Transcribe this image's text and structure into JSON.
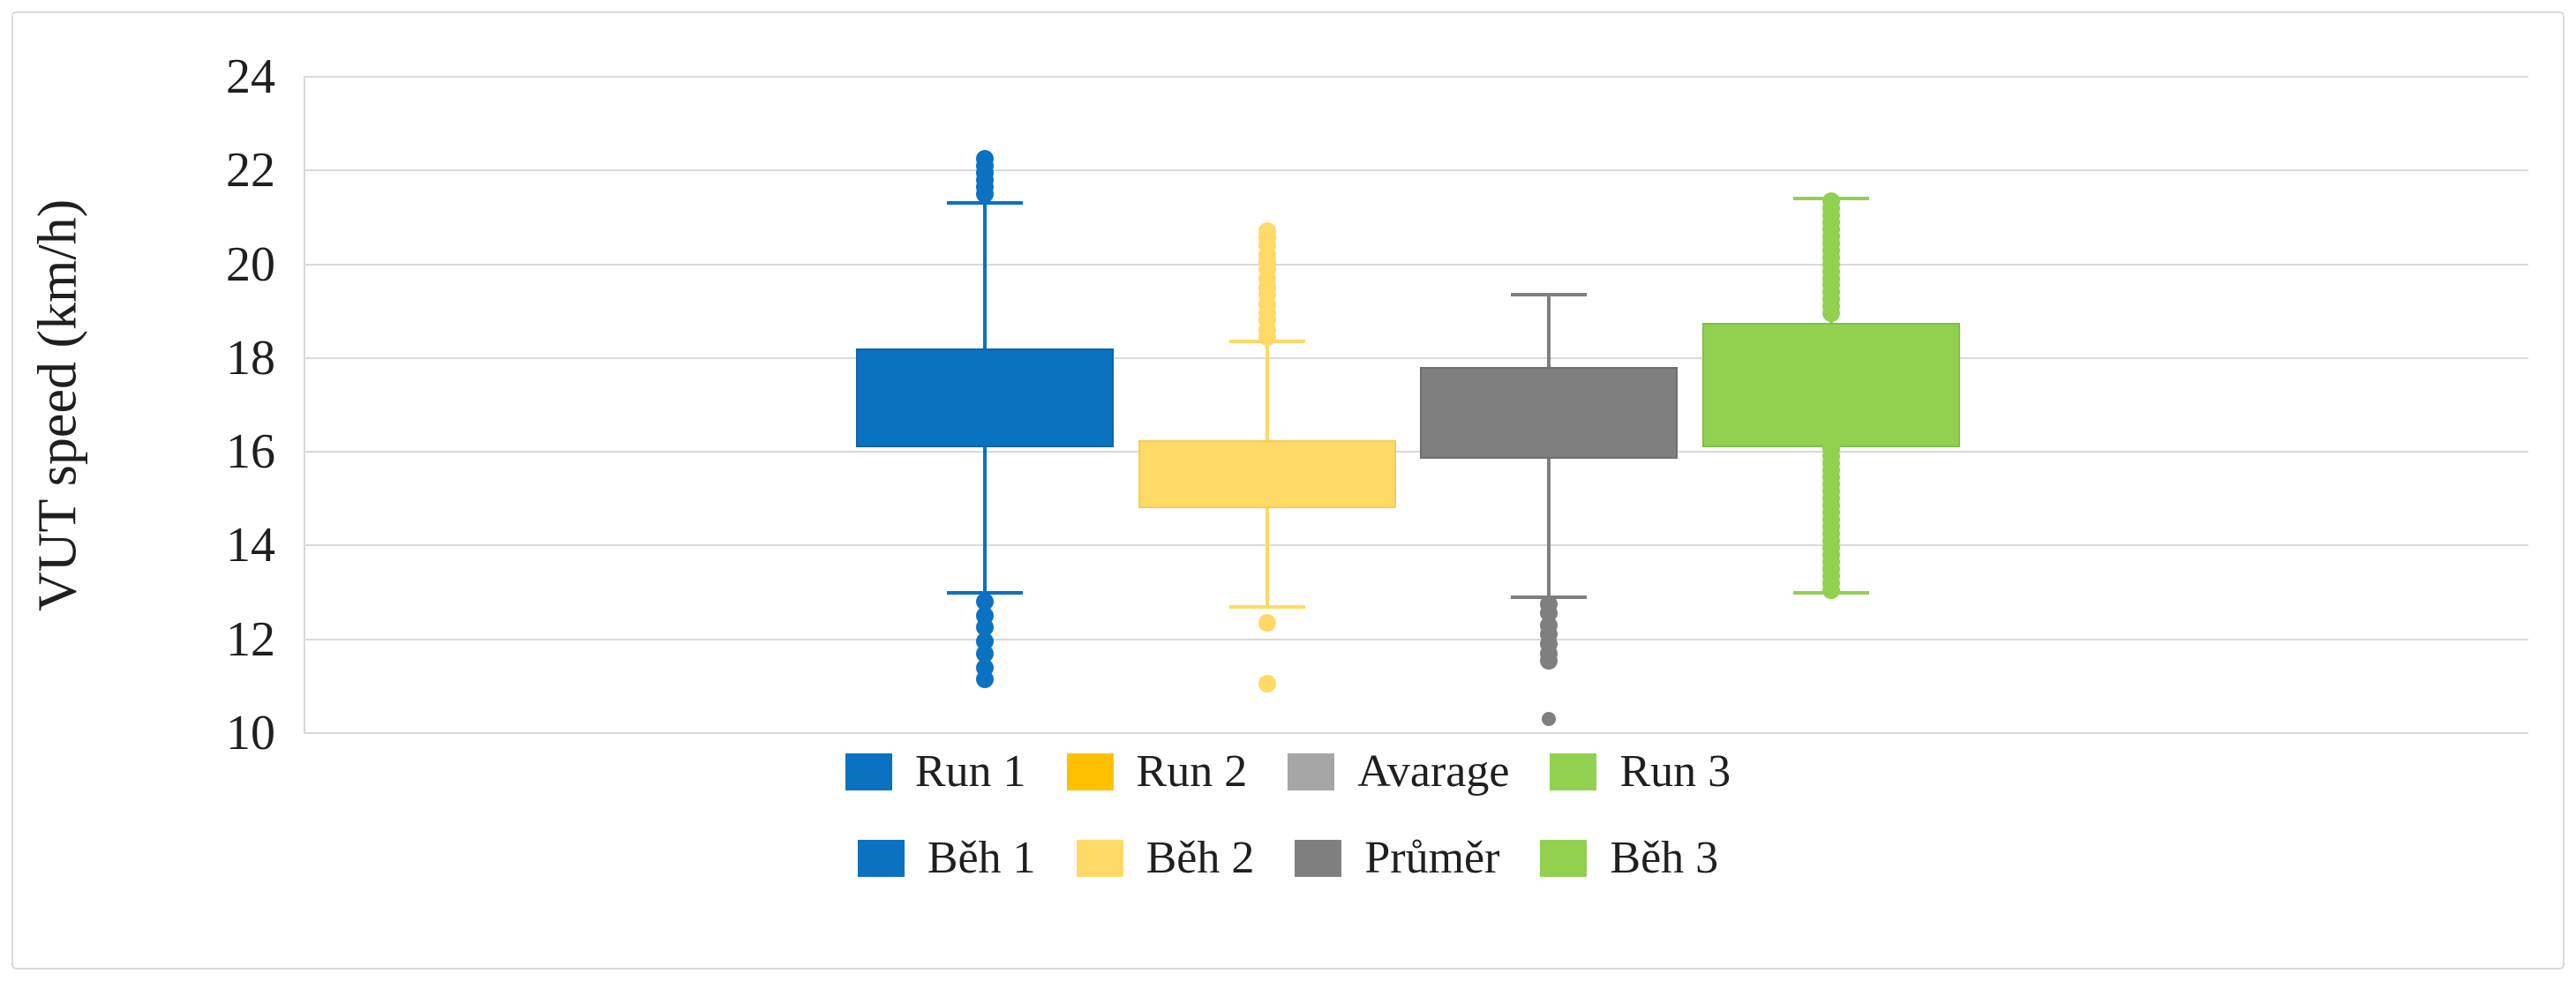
{
  "window": {
    "background": "#FFFFFF",
    "border_color": "#D9D9D9"
  },
  "chart_data": {
    "type": "boxplot",
    "title": "",
    "ylabel": "VUT speed (km/h)",
    "xlabel": "",
    "y_axis": {
      "min": 10,
      "max": 24,
      "step": 2
    },
    "grid": true,
    "gridline_color": "#D9D9D9",
    "text_color": "#1F1F1F",
    "box_width_frac": 0.1158,
    "cap_width_frac": 0.295,
    "series": [
      {
        "name": "Run 1",
        "name_cz": "Běh 1",
        "fill": "#0B72C1",
        "border": "#0A65AB",
        "q1": 16.1,
        "q3": 18.2,
        "whisker_low": 13.0,
        "whisker_high": 21.3,
        "center_frac": 0.3063,
        "outliers_high": [
          22.25,
          22.1,
          21.95,
          21.8,
          21.65,
          21.5
        ],
        "outliers_low": [
          12.8,
          12.5,
          12.25,
          11.95,
          11.7,
          11.4,
          11.15
        ]
      },
      {
        "name": "Run 2",
        "name_cz": "Běh 2",
        "fill": "#FFD966",
        "border": "#F7CC52",
        "q1": 14.8,
        "q3": 16.25,
        "whisker_low": 12.7,
        "whisker_high": 18.35,
        "center_frac": 0.4332,
        "outliers_high": [
          20.7,
          20.55,
          20.4,
          20.2,
          20.05,
          19.9,
          19.7,
          19.5,
          19.35,
          19.15,
          18.95,
          18.8,
          18.6,
          18.45
        ],
        "outliers_low": [
          12.35,
          11.05
        ]
      },
      {
        "name": "Avarage",
        "name_cz": "Průměr",
        "fill": "#7F7F7F",
        "border": "#6F6F6F",
        "q1": 15.85,
        "q3": 17.8,
        "whisker_low": 12.9,
        "whisker_high": 19.35,
        "center_frac": 0.5597,
        "outliers_high": [],
        "outliers_low": [
          12.75,
          12.55,
          12.3,
          12.1,
          11.9,
          11.7,
          11.55,
          10.3
        ]
      },
      {
        "name": "Run 3",
        "name_cz": "Běh 3",
        "fill": "#92D050",
        "border": "#83BD45",
        "q1": 16.1,
        "q3": 18.75,
        "whisker_low": 13.0,
        "whisker_high": 21.4,
        "center_frac": 0.6866,
        "outliers_high": [
          21.35,
          21.2,
          21.05,
          20.9,
          20.75,
          20.6,
          20.45,
          20.3,
          20.15,
          20.0,
          19.85,
          19.7,
          19.55,
          19.4,
          19.25,
          19.1,
          18.95
        ],
        "outliers_low": [
          16.05,
          15.9,
          15.75,
          15.6,
          15.45,
          15.3,
          15.15,
          15.0,
          14.85,
          14.7,
          14.55,
          14.4,
          14.25,
          14.1,
          13.95,
          13.8,
          13.65,
          13.5,
          13.35,
          13.2,
          13.05
        ]
      }
    ],
    "legend_rows": [
      {
        "items": [
          {
            "label": "Run 1",
            "color": "#0B72C1"
          },
          {
            "label": "Run 2",
            "color": "#FFC000"
          },
          {
            "label": "Avarage",
            "color": "#A6A6A6"
          },
          {
            "label": "Run 3",
            "color": "#92D050"
          }
        ]
      },
      {
        "items": [
          {
            "label": "Běh 1",
            "color": "#0B72C1"
          },
          {
            "label": "Běh 2",
            "color": "#FFD966"
          },
          {
            "label": "Průměr",
            "color": "#7F7F7F"
          },
          {
            "label": "Běh 3",
            "color": "#92D050"
          }
        ]
      }
    ]
  }
}
